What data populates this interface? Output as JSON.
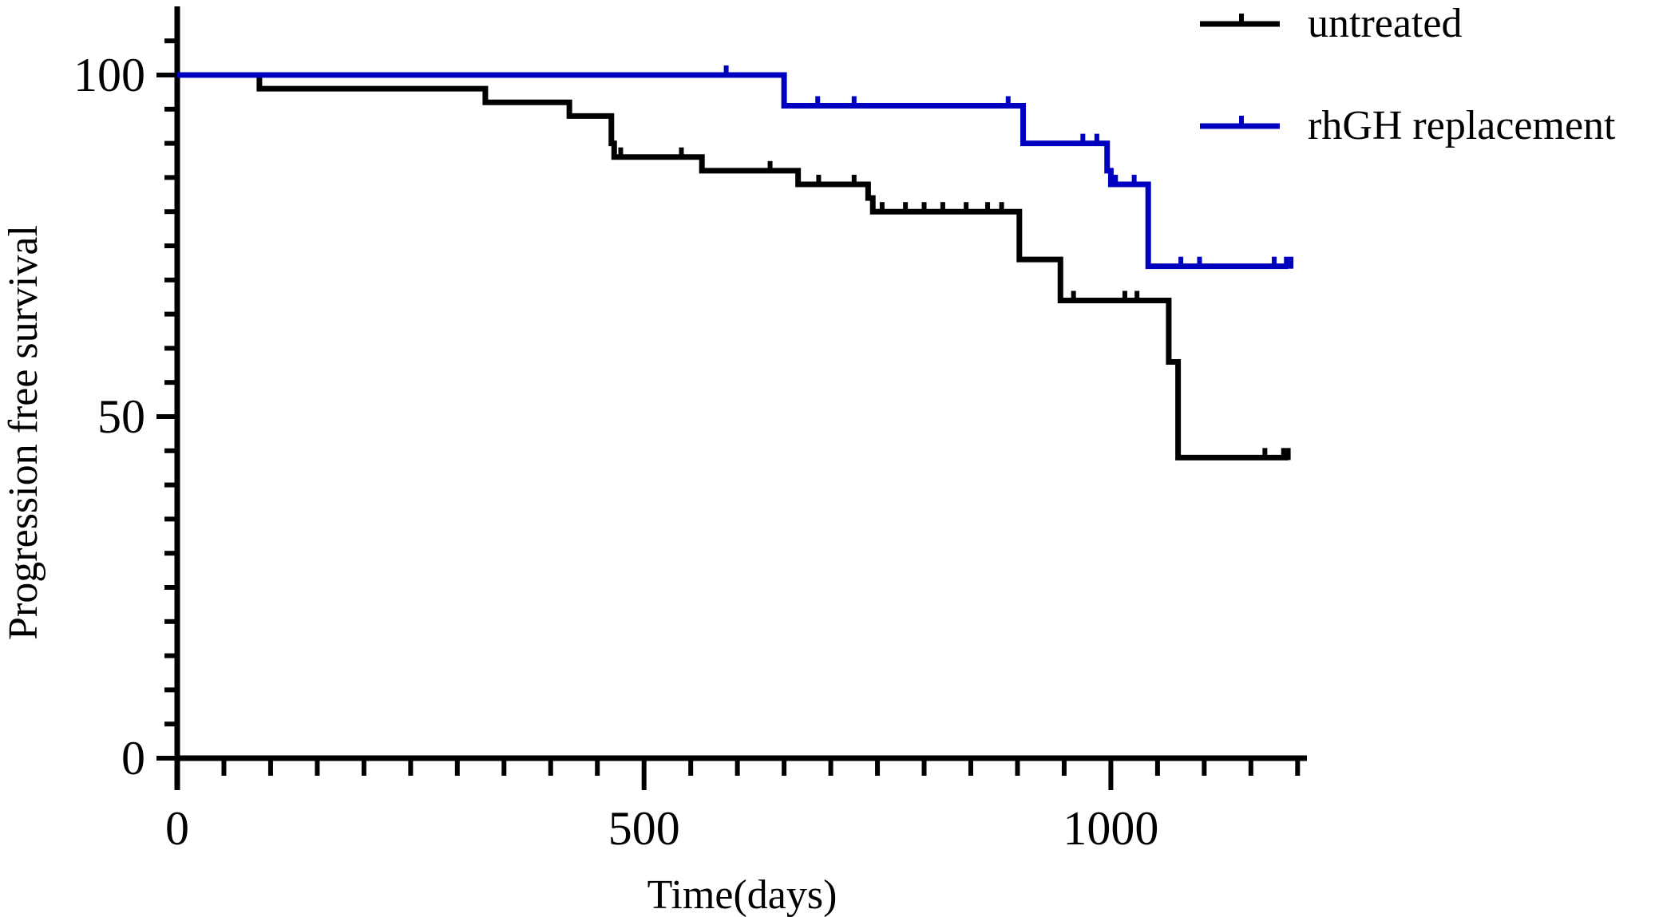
{
  "chart_data": {
    "type": "line",
    "subtype": "kaplan-meier",
    "title": "",
    "xlabel": "Time(days)",
    "ylabel": "Progression free survival",
    "xlim": [
      0,
      1210
    ],
    "ylim": [
      0,
      100
    ],
    "x_ticks": [
      0,
      500,
      1000
    ],
    "y_ticks": [
      0,
      50,
      100
    ],
    "grid": false,
    "legend_position": "top-right",
    "series": [
      {
        "name": "untreated",
        "color": "#000000",
        "steps": [
          [
            0,
            100
          ],
          [
            88,
            98
          ],
          [
            330,
            96
          ],
          [
            420,
            94
          ],
          [
            465,
            90
          ],
          [
            468,
            88
          ],
          [
            562,
            86
          ],
          [
            665,
            84
          ],
          [
            740,
            82
          ],
          [
            745,
            80
          ],
          [
            902,
            73
          ],
          [
            946,
            67
          ],
          [
            1062,
            58
          ],
          [
            1072,
            44
          ],
          [
            1190,
            44
          ]
        ],
        "censored": [
          [
            475,
            88
          ],
          [
            540,
            88
          ],
          [
            635,
            86
          ],
          [
            687,
            84
          ],
          [
            725,
            84
          ],
          [
            755,
            80
          ],
          [
            780,
            80
          ],
          [
            800,
            80
          ],
          [
            820,
            80
          ],
          [
            845,
            80
          ],
          [
            868,
            80
          ],
          [
            883,
            80
          ],
          [
            960,
            67
          ],
          [
            1015,
            67
          ],
          [
            1028,
            67
          ],
          [
            1165,
            44
          ],
          [
            1185,
            44
          ],
          [
            1190,
            44
          ]
        ]
      },
      {
        "name": "rhGH replacement",
        "color": "#0000bf",
        "steps": [
          [
            0,
            100
          ],
          [
            650,
            95.5
          ],
          [
            906,
            90
          ],
          [
            996,
            86
          ],
          [
            1000,
            86
          ],
          [
            1000,
            85
          ],
          [
            1000,
            84
          ],
          [
            1040,
            72
          ],
          [
            1190,
            72
          ]
        ],
        "censored": [
          [
            588,
            100
          ],
          [
            686,
            95.5
          ],
          [
            725,
            95.5
          ],
          [
            890,
            95.5
          ],
          [
            970,
            90
          ],
          [
            985,
            90
          ],
          [
            1005,
            84
          ],
          [
            1025,
            84
          ],
          [
            1075,
            72
          ],
          [
            1095,
            72
          ],
          [
            1175,
            72
          ],
          [
            1188,
            72
          ],
          [
            1193,
            72
          ]
        ]
      }
    ]
  }
}
